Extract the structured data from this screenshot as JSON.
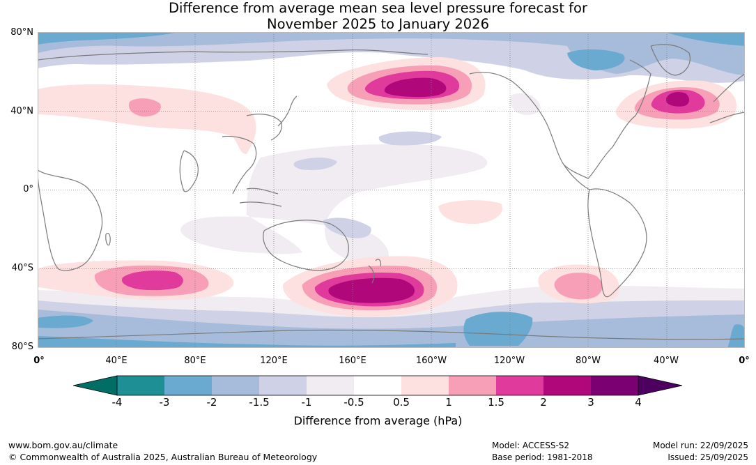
{
  "title": {
    "line1": "Difference from average mean sea level pressure forecast for",
    "line2": "November 2025 to January 2026"
  },
  "map": {
    "lat_labels": [
      "80°N",
      "40°N",
      "0°",
      "40°S",
      "80°S"
    ],
    "lon_labels": [
      "0°",
      "40°E",
      "80°E",
      "120°E",
      "160°E",
      "160°W",
      "120°W",
      "80°W",
      "40°W",
      "0°"
    ],
    "colors": {
      "neg_4": "#006e64",
      "neg_3": "#1f8f96",
      "neg_2": "#6aaad1",
      "neg_1_5": "#a7bcda",
      "neg_1": "#cfd2e6",
      "neg_0_5": "#f1ebf2",
      "zero": "#ffffff",
      "pos_0_5": "#fde0e0",
      "pos_1": "#f89fb8",
      "pos_1_5": "#df3a9c",
      "pos_2": "#b0087a",
      "pos_3": "#7b0072",
      "pos_4": "#4d0060"
    }
  },
  "colorbar": {
    "tick_labels": [
      "-4",
      "-3",
      "-2",
      "-1.5",
      "-1",
      "-0.5",
      "0.5",
      "1",
      "1.5",
      "2",
      "3",
      "4"
    ],
    "title": "Difference from average (hPa)"
  },
  "footer": {
    "website": "www.bom.gov.au/climate",
    "copyright": "© Commonwealth of Australia 2025, Australian Bureau of Meteorology",
    "model": "Model: ACCESS-S2",
    "base_period": "Base period: 1981-2018",
    "model_run": "Model run: 22/09/2025",
    "issued": "Issued: 25/09/2025"
  }
}
